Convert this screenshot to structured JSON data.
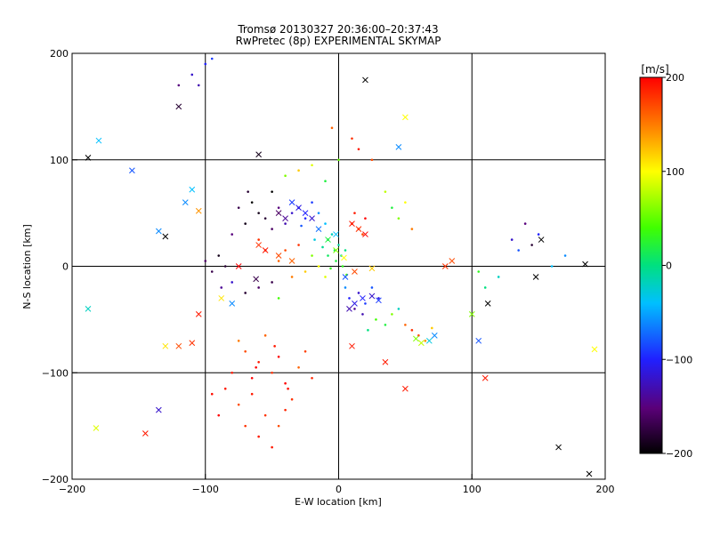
{
  "chart_data": {
    "type": "scatter",
    "title": "Tromsø 20130327 20:36:00–20:37:43",
    "subtitle": "RwPretec (8p) EXPERIMENTAL SKYMAP",
    "xlabel": "E-W location [km]",
    "ylabel": "N-S location [km]",
    "xlim": [
      -200,
      200
    ],
    "ylim": [
      -200,
      200
    ],
    "xticks": [
      -200,
      -100,
      0,
      100,
      200
    ],
    "yticks": [
      -200,
      -100,
      0,
      100,
      200
    ],
    "grid": true,
    "colorbar": {
      "label": "[m/s]",
      "min": -200,
      "max": 200,
      "ticks": [
        200,
        100,
        0,
        -100,
        -200
      ],
      "colormap": "black-purple-blue-cyan-green-yellow-red",
      "position": "right"
    },
    "series": [
      {
        "marker": "point",
        "points": [
          [
            -35,
            50,
            -120
          ],
          [
            -30,
            55,
            -110
          ],
          [
            -25,
            45,
            -100
          ],
          [
            -20,
            60,
            -90
          ],
          [
            -40,
            40,
            -130
          ],
          [
            -45,
            55,
            -150
          ],
          [
            -50,
            35,
            -160
          ],
          [
            -55,
            45,
            -180
          ],
          [
            -60,
            50,
            -190
          ],
          [
            -28,
            38,
            -80
          ],
          [
            -15,
            50,
            -60
          ],
          [
            -10,
            40,
            -40
          ],
          [
            -5,
            30,
            -20
          ],
          [
            0,
            20,
            -10
          ],
          [
            5,
            15,
            0
          ],
          [
            -8,
            10,
            10
          ],
          [
            -2,
            5,
            20
          ],
          [
            3,
            0,
            30
          ],
          [
            -12,
            18,
            -5
          ],
          [
            -18,
            25,
            -30
          ],
          [
            10,
            40,
            190
          ],
          [
            15,
            35,
            180
          ],
          [
            20,
            45,
            200
          ],
          [
            18,
            30,
            170
          ],
          [
            12,
            50,
            190
          ],
          [
            8,
            -30,
            -100
          ],
          [
            15,
            -25,
            -120
          ],
          [
            20,
            -35,
            -90
          ],
          [
            25,
            -20,
            -80
          ],
          [
            12,
            -40,
            -140
          ],
          [
            30,
            -30,
            -110
          ],
          [
            18,
            -45,
            -130
          ],
          [
            5,
            -20,
            -60
          ],
          [
            -60,
            -90,
            190
          ],
          [
            -50,
            -100,
            180
          ],
          [
            -40,
            -110,
            200
          ],
          [
            -70,
            -80,
            170
          ],
          [
            -65,
            -120,
            190
          ],
          [
            -55,
            -140,
            180
          ],
          [
            -45,
            -85,
            200
          ],
          [
            -30,
            -95,
            160
          ],
          [
            -80,
            -100,
            190
          ],
          [
            -75,
            -130,
            170
          ],
          [
            -35,
            -125,
            180
          ],
          [
            -90,
            -140,
            200
          ],
          [
            -85,
            -115,
            190
          ],
          [
            -20,
            -105,
            185
          ],
          [
            -25,
            -80,
            175
          ],
          [
            -95,
            -120,
            195
          ],
          [
            -60,
            -160,
            190
          ],
          [
            -70,
            -150,
            180
          ],
          [
            -50,
            -170,
            190
          ],
          [
            -40,
            -135,
            185
          ],
          [
            -65,
            -105,
            200
          ],
          [
            -45,
            -150,
            170
          ],
          [
            -55,
            -65,
            160
          ],
          [
            -75,
            -70,
            150
          ],
          [
            -48,
            -75,
            190
          ],
          [
            -62,
            -95,
            200
          ],
          [
            -38,
            -115,
            195
          ],
          [
            -30,
            20,
            180
          ],
          [
            -40,
            15,
            170
          ],
          [
            -55,
            15,
            190
          ],
          [
            -45,
            5,
            160
          ],
          [
            -60,
            25,
            180
          ],
          [
            -20,
            10,
            60
          ],
          [
            -10,
            -10,
            90
          ],
          [
            -15,
            0,
            100
          ],
          [
            -25,
            -5,
            120
          ],
          [
            -35,
            -10,
            150
          ],
          [
            -50,
            -15,
            -170
          ],
          [
            -60,
            -20,
            -160
          ],
          [
            -70,
            -25,
            -180
          ],
          [
            -80,
            -15,
            -120
          ],
          [
            -45,
            -30,
            40
          ],
          [
            -65,
            60,
            -200
          ],
          [
            -70,
            40,
            -190
          ],
          [
            -75,
            55,
            -170
          ],
          [
            -80,
            30,
            -150
          ],
          [
            -68,
            70,
            -180
          ],
          [
            40,
            55,
            20
          ],
          [
            45,
            45,
            60
          ],
          [
            50,
            60,
            100
          ],
          [
            35,
            70,
            80
          ],
          [
            55,
            35,
            150
          ],
          [
            140,
            40,
            -150
          ],
          [
            145,
            20,
            -180
          ],
          [
            130,
            25,
            -120
          ],
          [
            150,
            30,
            -100
          ],
          [
            135,
            15,
            -80
          ],
          [
            160,
            0,
            -40
          ],
          [
            170,
            10,
            -60
          ],
          [
            120,
            -10,
            -20
          ],
          [
            110,
            -20,
            0
          ],
          [
            105,
            -5,
            30
          ],
          [
            -5,
            130,
            160
          ],
          [
            10,
            120,
            180
          ],
          [
            15,
            110,
            190
          ],
          [
            25,
            100,
            170
          ],
          [
            0,
            100,
            50
          ],
          [
            -100,
            190,
            -100
          ],
          [
            -110,
            180,
            -120
          ],
          [
            -95,
            195,
            -90
          ],
          [
            -105,
            170,
            -130
          ],
          [
            -120,
            170,
            -150
          ],
          [
            -30,
            90,
            120
          ],
          [
            -20,
            95,
            90
          ],
          [
            -40,
            85,
            60
          ],
          [
            -10,
            80,
            20
          ],
          [
            -50,
            70,
            -200
          ],
          [
            -90,
            10,
            -190
          ],
          [
            -85,
            0,
            -180
          ],
          [
            -95,
            -5,
            -170
          ],
          [
            -100,
            5,
            -160
          ],
          [
            -88,
            -20,
            -140
          ],
          [
            28,
            -50,
            40
          ],
          [
            35,
            -55,
            20
          ],
          [
            40,
            -45,
            60
          ],
          [
            22,
            -60,
            0
          ],
          [
            45,
            -40,
            -20
          ],
          [
            55,
            -60,
            180
          ],
          [
            60,
            -65,
            170
          ],
          [
            65,
            -70,
            140
          ],
          [
            50,
            -55,
            160
          ],
          [
            70,
            -58,
            120
          ],
          [
            -8,
            25,
            10
          ],
          [
            -3,
            15,
            5
          ],
          [
            2,
            10,
            -5
          ],
          [
            -6,
            -2,
            30
          ],
          [
            6,
            -8,
            45
          ]
        ]
      },
      {
        "marker": "x",
        "points": [
          [
            -30,
            55,
            -110
          ],
          [
            -25,
            50,
            -100
          ],
          [
            -20,
            45,
            -120
          ],
          [
            -35,
            60,
            -90
          ],
          [
            -40,
            45,
            -140
          ],
          [
            -45,
            50,
            -160
          ],
          [
            -15,
            35,
            -70
          ],
          [
            10,
            40,
            190
          ],
          [
            15,
            35,
            180
          ],
          [
            20,
            30,
            200
          ],
          [
            12,
            -35,
            -110
          ],
          [
            18,
            -30,
            -100
          ],
          [
            25,
            -28,
            -120
          ],
          [
            8,
            -40,
            -130
          ],
          [
            30,
            -32,
            -90
          ],
          [
            -55,
            15,
            190
          ],
          [
            -60,
            20,
            180
          ],
          [
            -45,
            10,
            170
          ],
          [
            -35,
            5,
            160
          ],
          [
            -75,
            0,
            200
          ],
          [
            -105,
            -45,
            190
          ],
          [
            -110,
            -72,
            180
          ],
          [
            -120,
            -75,
            170
          ],
          [
            -130,
            -75,
            110
          ],
          [
            -135,
            -135,
            -120
          ],
          [
            -145,
            -157,
            190
          ],
          [
            -182,
            -152,
            90
          ],
          [
            -188,
            -40,
            -20
          ],
          [
            -180,
            118,
            -40
          ],
          [
            -188,
            102,
            -200
          ],
          [
            -155,
            90,
            -80
          ],
          [
            -120,
            150,
            -180
          ],
          [
            -105,
            52,
            140
          ],
          [
            -110,
            72,
            -40
          ],
          [
            -115,
            60,
            -60
          ],
          [
            -135,
            33,
            -60
          ],
          [
            -130,
            28,
            -200
          ],
          [
            -88,
            -30,
            110
          ],
          [
            -80,
            -35,
            -60
          ],
          [
            -62,
            -12,
            -170
          ],
          [
            20,
            175,
            -200
          ],
          [
            50,
            140,
            100
          ],
          [
            45,
            112,
            -60
          ],
          [
            -60,
            105,
            -190
          ],
          [
            10,
            -75,
            190
          ],
          [
            35,
            -90,
            190
          ],
          [
            50,
            -115,
            190
          ],
          [
            58,
            -68,
            60
          ],
          [
            62,
            -72,
            80
          ],
          [
            68,
            -70,
            -30
          ],
          [
            72,
            -65,
            -60
          ],
          [
            80,
            0,
            180
          ],
          [
            85,
            5,
            170
          ],
          [
            100,
            -45,
            60
          ],
          [
            110,
            -105,
            190
          ],
          [
            105,
            -70,
            -80
          ],
          [
            112,
            -35,
            -200
          ],
          [
            148,
            -10,
            -200
          ],
          [
            152,
            25,
            -200
          ],
          [
            165,
            -170,
            -200
          ],
          [
            185,
            2,
            -200
          ],
          [
            188,
            -195,
            -200
          ],
          [
            192,
            -78,
            100
          ],
          [
            25,
            -2,
            120
          ],
          [
            12,
            -5,
            170
          ],
          [
            -2,
            15,
            60
          ],
          [
            4,
            8,
            100
          ],
          [
            -8,
            25,
            20
          ],
          [
            -2,
            30,
            -40
          ],
          [
            5,
            -10,
            -80
          ]
        ]
      }
    ]
  }
}
